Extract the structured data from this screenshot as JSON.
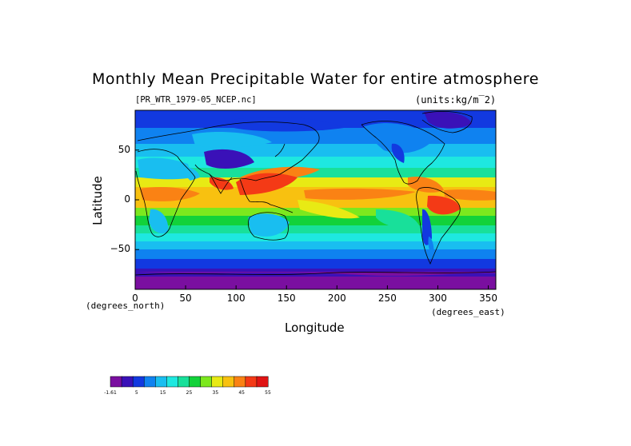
{
  "figure": {
    "title": "Monthly Mean Precipitable Water for entire atmosphere",
    "file_label": "[PR_WTR_1979-05_NCEP.nc]",
    "units_label": "(units:kg/m‾2)",
    "x_axis_label": "Longitude",
    "y_axis_label": "Latitude",
    "x_unit_left": "(degrees_north)",
    "x_unit_right": "(degrees_east)"
  },
  "chart_data": {
    "type": "heatmap",
    "x_ticks": [
      "0",
      "50",
      "100",
      "150",
      "200",
      "250",
      "300",
      "350"
    ],
    "x_tick_values": [
      0,
      50,
      100,
      150,
      200,
      250,
      300,
      350
    ],
    "y_ticks": [
      "50",
      "0",
      "−50"
    ],
    "y_tick_values": [
      50,
      0,
      -50
    ],
    "xlim": [
      0,
      357.5
    ],
    "ylim": [
      -90,
      90
    ],
    "colorbar": {
      "labels": [
        "-1.61",
        "5",
        "15",
        "25",
        "35",
        "45",
        "55"
      ],
      "colors": [
        "#7a0fa0",
        "#3a11b8",
        "#1239e0",
        "#0f82f0",
        "#19bef0",
        "#1ee8e0",
        "#18e09a",
        "#12d23a",
        "#7ce81e",
        "#e8ea14",
        "#f8c110",
        "#fa8214",
        "#f43a16",
        "#e01414"
      ]
    },
    "colors": {
      "purple": "#7a0fa0",
      "dark_blue": "#3a11b8",
      "blue": "#1239e0",
      "mid_blue": "#0f82f0",
      "light_blue": "#19bef0",
      "cyan": "#1ee8e0",
      "aqua_green": "#18e09a",
      "green": "#12d23a",
      "yellow_green": "#7ce81e",
      "yellow": "#e8ea14",
      "orange_yellow": "#f8c110",
      "orange": "#fa8214",
      "red": "#f43a16"
    }
  }
}
